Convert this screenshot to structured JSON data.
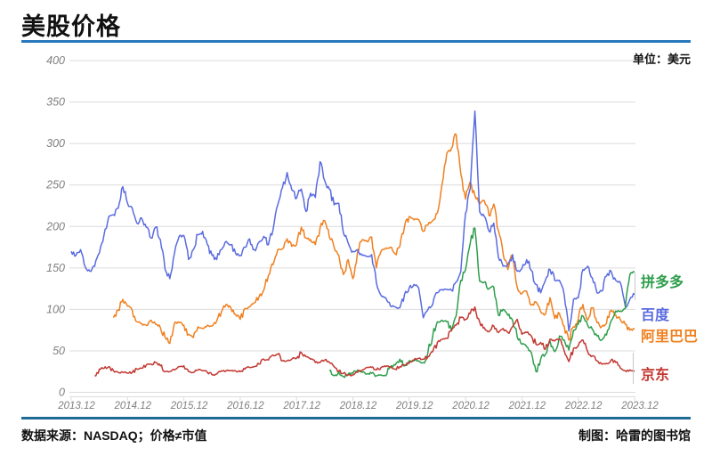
{
  "header": {
    "title": "美股价格",
    "unit_label": "单位：美元"
  },
  "footer": {
    "source": "数据来源：NASDAQ；价格≠市值",
    "credit": "制图：哈雷的图书馆"
  },
  "colors": {
    "title_rule": "#2878BE",
    "footer_rule": "#1F6B94",
    "grid": "#DCDCDC",
    "axis_text": "#808080",
    "leader": "#C8C8C8"
  },
  "chart_data": {
    "type": "line",
    "title": "美股价格",
    "unit": "美元",
    "grid": "horizontal",
    "legend_position": "right-outside",
    "x_axis": {
      "labels": [
        "2013.12",
        "2014.12",
        "2015.12",
        "2016.12",
        "2017.12",
        "2018.12",
        "2019.12",
        "2020.12",
        "2021.12",
        "2022.12",
        "2023.12"
      ],
      "start": "2013.12",
      "end": "2023.12",
      "resolution": "monthly"
    },
    "y_axis": {
      "min": 0,
      "max": 400,
      "step": 50,
      "tick_labels": [
        "400",
        "350",
        "300",
        "250",
        "200",
        "150",
        "100",
        "50",
        "0"
      ]
    },
    "series": [
      {
        "name": "拼多多",
        "color": "#2E9E4C",
        "start_month_index": 55,
        "monthly_values": [
          26,
          20,
          25,
          19,
          22,
          23,
          27,
          24,
          22,
          23,
          20,
          21,
          20,
          31,
          33,
          40,
          32,
          38,
          38,
          38,
          36,
          49,
          68,
          85,
          87,
          85,
          74,
          92,
          135,
          148,
          180,
          198,
          134,
          133,
          125,
          127,
          93,
          100,
          93,
          87,
          67,
          58,
          55,
          48,
          25,
          40,
          46,
          62,
          49,
          68,
          63,
          51,
          75,
          82,
          92,
          81,
          76,
          68,
          63,
          69,
          86,
          98,
          98,
          101,
          142,
          145
        ]
      },
      {
        "name": "百度",
        "color": "#5A6BDF",
        "start_month_index": 0,
        "monthly_values": [
          170,
          165,
          172,
          151,
          146,
          152,
          168,
          190,
          212,
          214,
          222,
          248,
          228,
          222,
          204,
          210,
          199,
          186,
          199,
          184,
          148,
          137,
          168,
          188,
          189,
          160,
          172,
          190,
          194,
          178,
          165,
          160,
          172,
          182,
          178,
          168,
          165,
          175,
          185,
          172,
          181,
          188,
          178,
          196,
          226,
          247,
          265,
          244,
          234,
          245,
          218,
          240,
          235,
          278,
          255,
          245,
          226,
          228,
          192,
          180,
          170,
          172,
          165,
          164,
          166,
          132,
          117,
          114,
          104,
          103,
          102,
          118,
          126,
          130,
          126,
          90,
          100,
          106,
          120,
          124,
          124,
          123,
          133,
          146,
          216,
          246,
          339,
          218,
          212,
          194,
          204,
          163,
          152,
          154,
          166,
          146,
          149,
          160,
          147,
          130,
          120,
          135,
          148,
          135,
          135,
          118,
          74,
          112,
          114,
          148,
          152,
          138,
          120,
          122,
          140,
          146,
          135,
          132,
          104,
          112,
          118
        ]
      },
      {
        "name": "阿里巴巴",
        "color": "#F0801F",
        "start_month_index": 9,
        "monthly_values": [
          90,
          99,
          112,
          104,
          99,
          85,
          83,
          81,
          87,
          82,
          78,
          66,
          59,
          84,
          84,
          81,
          70,
          66,
          79,
          77,
          81,
          80,
          86,
          97,
          106,
          102,
          94,
          88,
          101,
          103,
          108,
          115,
          123,
          141,
          154,
          172,
          173,
          185,
          176,
          178,
          199,
          186,
          184,
          178,
          198,
          207,
          187,
          175,
          165,
          142,
          160,
          137,
          170,
          184,
          182,
          187,
          150,
          170,
          174,
          175,
          167,
          176,
          200,
          212,
          208,
          208,
          194,
          202,
          207,
          216,
          251,
          288,
          294,
          311,
          263,
          233,
          254,
          237,
          227,
          231,
          213,
          227,
          195,
          167,
          148,
          165,
          127,
          119,
          122,
          105,
          109,
          97,
          94,
          114,
          89,
          95,
          80,
          63,
          79,
          88,
          106,
          87,
          102,
          84,
          79,
          83,
          99,
          93,
          87,
          82,
          75,
          76
        ]
      },
      {
        "name": "京东",
        "color": "#C23831",
        "start_month_index": 5,
        "monthly_values": [
          20,
          28,
          29,
          31,
          26,
          24,
          24,
          23,
          24,
          28,
          29,
          33,
          34,
          36,
          32,
          25,
          25,
          27,
          31,
          32,
          25,
          24,
          27,
          26,
          24,
          21,
          22,
          26,
          26,
          26,
          26,
          25,
          28,
          30,
          31,
          34,
          40,
          39,
          45,
          46,
          38,
          38,
          40,
          41,
          48,
          43,
          40,
          36,
          36,
          39,
          36,
          31,
          26,
          23,
          21,
          21,
          24,
          27,
          30,
          30,
          27,
          30,
          31,
          31,
          28,
          31,
          33,
          35,
          39,
          41,
          40,
          43,
          49,
          60,
          64,
          65,
          75,
          81,
          90,
          88,
          95,
          103,
          85,
          78,
          73,
          80,
          72,
          77,
          72,
          79,
          88,
          70,
          72,
          68,
          58,
          60,
          52,
          64,
          62,
          64,
          50,
          37,
          53,
          56,
          63,
          49,
          44,
          38,
          34,
          35,
          39,
          36,
          29,
          26,
          27,
          26
        ]
      }
    ]
  }
}
